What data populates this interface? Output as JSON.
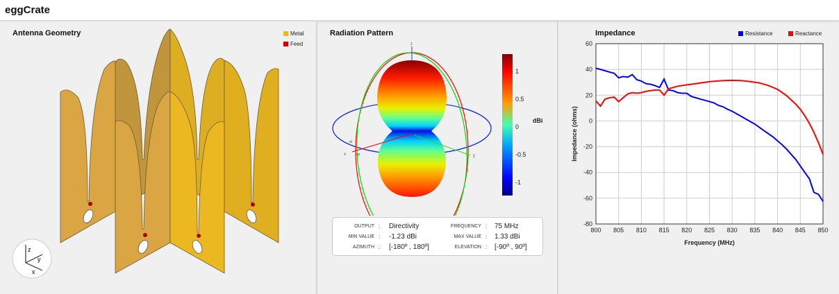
{
  "app": {
    "title": "eggCrate"
  },
  "geometry": {
    "title": "Antenna Geometry",
    "legend": [
      {
        "label": "Metal",
        "color": "#eab823"
      },
      {
        "label": "Feed",
        "color": "#cc0000"
      }
    ],
    "axes": {
      "z": "z",
      "y": "y",
      "x": "x"
    }
  },
  "pattern": {
    "title": "Radiation Pattern",
    "axes": {
      "z": "z",
      "x": "x",
      "y": "y",
      "el": "el",
      "az": "az"
    },
    "colorbar": {
      "unit": "dBi",
      "ticks": [
        "1",
        "0.5",
        "0",
        "-0.5",
        "-1"
      ]
    },
    "info": {
      "output_label": "OUTPUT",
      "output": "Directivity",
      "frequency_label": "FREQUENCY",
      "frequency": "75 MHz",
      "min_label": "MIN VALUE",
      "min": "-1.23 dBi",
      "max_label": "MAX VALUE",
      "max": "1.33 dBi",
      "azimuth_label": "AZIMUTH",
      "azimuth": "[-180º , 180º]",
      "elevation_label": "ELEVATION",
      "elevation": "[-90º , 90º]",
      "sep": ":"
    }
  },
  "chart_data": {
    "type": "line",
    "title": "Impedance",
    "xlabel": "Frequency (MHz)",
    "ylabel": "Impedance (ohms)",
    "xlim": [
      800,
      850
    ],
    "ylim": [
      -80,
      60
    ],
    "grid": true,
    "legend_position": "top-right",
    "xticks": [
      "800",
      "805",
      "810",
      "815",
      "820",
      "825",
      "830",
      "835",
      "840",
      "845",
      "850"
    ],
    "yticks": [
      "60",
      "40",
      "20",
      "0",
      "-20",
      "-40",
      "-60",
      "-80"
    ],
    "series": [
      {
        "name": "Resistance",
        "color": "#0000ff",
        "x": [
          800,
          801,
          802,
          803,
          804,
          805,
          806,
          807,
          808,
          809,
          810,
          811,
          812,
          813,
          814,
          815,
          816,
          817,
          818,
          819,
          820,
          821,
          822,
          823,
          824,
          825,
          826,
          827,
          828,
          829,
          830,
          831,
          832,
          833,
          834,
          835,
          836,
          837,
          838,
          839,
          840,
          841,
          842,
          843,
          844,
          845,
          846,
          847,
          848,
          849,
          850
        ],
        "y": [
          41,
          40,
          39,
          38,
          37,
          33.5,
          34.5,
          34,
          36,
          32,
          31,
          29,
          28.5,
          27.5,
          26,
          32.5,
          24,
          23.5,
          22,
          21.5,
          21.5,
          19,
          18,
          17,
          16,
          15,
          14,
          12,
          11,
          9,
          7.5,
          5.5,
          3.5,
          1.5,
          -0.5,
          -2.5,
          -5,
          -7.5,
          -10,
          -12.5,
          -15.5,
          -18.5,
          -22,
          -26,
          -30,
          -35,
          -40,
          -45,
          -55.5,
          -57,
          -62.5
        ]
      },
      {
        "name": "Reactance",
        "color": "#ff0000",
        "x": [
          800,
          801,
          802,
          803,
          804,
          805,
          806,
          807,
          808,
          809,
          810,
          811,
          812,
          813,
          814,
          815,
          816,
          818,
          820,
          822,
          825,
          828,
          830,
          832,
          834,
          836,
          838,
          840,
          842,
          844,
          845,
          846,
          847,
          848,
          849,
          850
        ],
        "y": [
          15.5,
          11.5,
          17,
          18,
          18.5,
          15,
          18,
          21,
          22,
          21.5,
          22,
          23,
          23.5,
          24,
          24,
          20,
          25,
          27,
          28,
          29,
          30.5,
          31.3,
          31.5,
          31.3,
          30.5,
          29.5,
          27.5,
          24.5,
          19.5,
          13,
          9,
          4,
          -2,
          -9,
          -17,
          -26
        ]
      }
    ]
  }
}
